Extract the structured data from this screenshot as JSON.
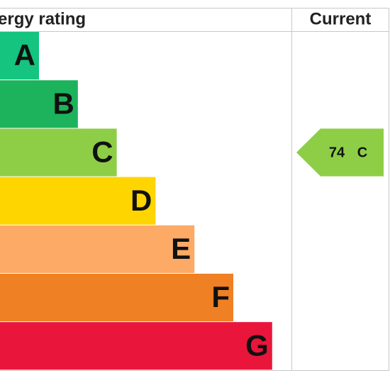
{
  "header": {
    "title": "ergy rating",
    "current": "Current"
  },
  "bands": [
    {
      "letter": "A",
      "color": "#14c47f"
    },
    {
      "letter": "B",
      "color": "#1cb35c"
    },
    {
      "letter": "C",
      "color": "#8dce46"
    },
    {
      "letter": "D",
      "color": "#ffd500"
    },
    {
      "letter": "E",
      "color": "#fcaa65"
    },
    {
      "letter": "F",
      "color": "#ef8023"
    },
    {
      "letter": "G",
      "color": "#e9153b"
    }
  ],
  "current": {
    "score": 74,
    "band": "C",
    "color": "#8dce46"
  }
}
